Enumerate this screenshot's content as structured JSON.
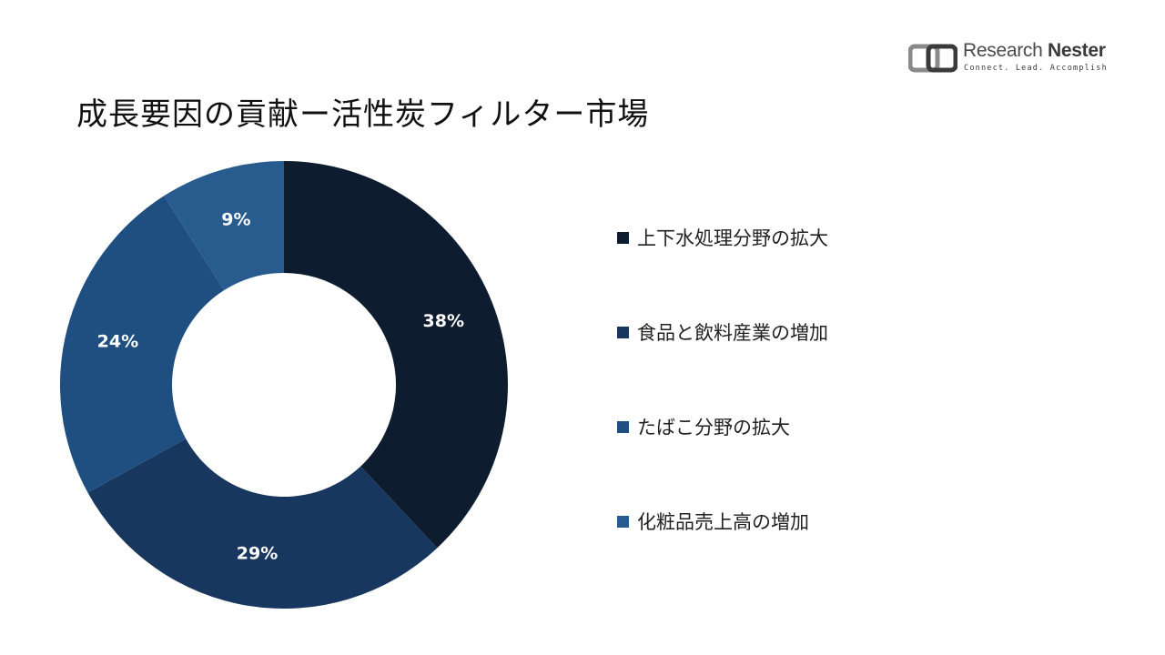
{
  "title": "成長要因の貢献ー活性炭フィルター市場",
  "logo": {
    "name_light": "Research",
    "name_bold": "Nester",
    "tagline": "Connect. Lead. Accomplish"
  },
  "chart_data": {
    "type": "pie",
    "donut": true,
    "title": "成長要因の貢献ー活性炭フィルター市場",
    "series": [
      {
        "name": "上下水処理分野の拡大",
        "value": 38,
        "label": "38%",
        "color": "#0d1c2e"
      },
      {
        "name": "食品と飲料産業の増加",
        "value": 29,
        "label": "29%",
        "color": "#17375e"
      },
      {
        "name": "たばこ分野の拡大",
        "value": 24,
        "label": "24%",
        "color": "#1f4e80"
      },
      {
        "name": "化粧品売上高の増加",
        "value": 9,
        "label": "9%",
        "color": "#285c8f"
      }
    ],
    "legend_position": "right"
  }
}
